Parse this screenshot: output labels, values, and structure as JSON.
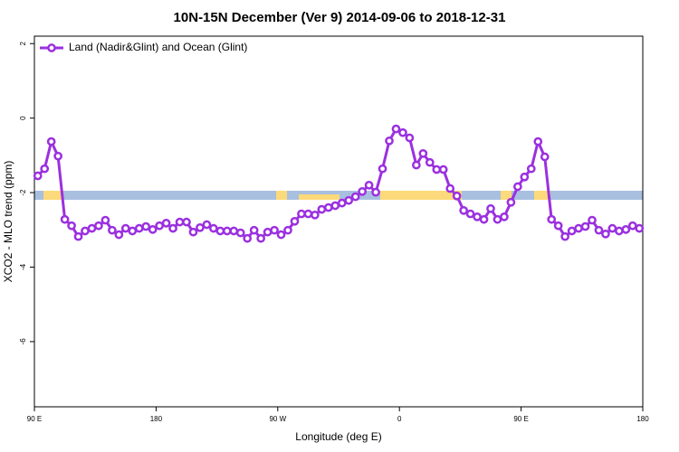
{
  "chart_data": {
    "type": "line",
    "title": "10N-15N December (Ver 9)   2014-09-06 to 2018-12-31",
    "x_label": "Longitude (deg E)",
    "y_label": "XCO2 - MLO trend (ppm)",
    "x": [
      92.5,
      97.5,
      102.5,
      107.5,
      112.5,
      117.5,
      122.5,
      127.5,
      132.5,
      137.5,
      142.5,
      147.5,
      152.5,
      157.5,
      162.5,
      167.5,
      172.5,
      177.5,
      182.5,
      187.5,
      192.5,
      197.5,
      202.5,
      207.5,
      212.5,
      217.5,
      222.5,
      227.5,
      232.5,
      237.5,
      242.5,
      247.5,
      252.5,
      257.5,
      262.5,
      267.5,
      272.5,
      277.5,
      282.5,
      287.5,
      292.5,
      297.5,
      302.5,
      307.5,
      312.5,
      317.5,
      322.5,
      327.5,
      332.5,
      337.5,
      342.5,
      347.5,
      352.5,
      357.5,
      362.5,
      367.5,
      372.5,
      377.5,
      382.5,
      387.5,
      392.5,
      397.5,
      402.5,
      407.5,
      412.5,
      417.5,
      422.5,
      427.5,
      432.5,
      437.5,
      442.5,
      447.5,
      452.5,
      457.5,
      462.5,
      467.5,
      472.5,
      477.5,
      482.5,
      487.5,
      492.5,
      497.5,
      502.5,
      507.5,
      512.5,
      517.5,
      522.5,
      527.5,
      532.5,
      537.5
    ],
    "series": [
      {
        "name": "Land (Nadir&Glint) and Ocean (Glint)",
        "color": "#9b30e0",
        "values": [
          -1.55,
          -1.36,
          -0.63,
          -1.02,
          -2.72,
          -2.89,
          -3.18,
          -3.03,
          -2.96,
          -2.89,
          -2.74,
          -3.01,
          -3.13,
          -2.96,
          -3.03,
          -2.96,
          -2.91,
          -2.99,
          -2.89,
          -2.82,
          -2.96,
          -2.79,
          -2.79,
          -3.06,
          -2.94,
          -2.86,
          -2.96,
          -3.03,
          -3.03,
          -3.03,
          -3.08,
          -3.23,
          -3.01,
          -3.23,
          -3.06,
          -3.01,
          -3.13,
          -3.01,
          -2.77,
          -2.57,
          -2.57,
          -2.6,
          -2.45,
          -2.4,
          -2.35,
          -2.28,
          -2.21,
          -2.11,
          -1.97,
          -1.8,
          -1.99,
          -1.36,
          -0.61,
          -0.29,
          -0.39,
          -0.53,
          -1.26,
          -0.95,
          -1.19,
          -1.38,
          -1.38,
          -1.89,
          -2.09,
          -2.48,
          -2.57,
          -2.65,
          -2.72,
          -2.43,
          -2.72,
          -2.65,
          -2.26,
          -1.84,
          -1.58,
          -1.36,
          -0.63,
          -1.04,
          -2.72,
          -2.89,
          -3.18,
          -3.03,
          -2.96,
          -2.91,
          -2.74,
          -3.01,
          -3.11,
          -2.96,
          -3.03,
          -2.99,
          -2.89,
          -2.96
        ]
      }
    ],
    "xlim": [
      90,
      540
    ],
    "xticks": [
      {
        "value": 90,
        "label": "90 E"
      },
      180,
      {
        "value": 270,
        "label": "90 W"
      },
      {
        "value": 360,
        "label": "0"
      },
      {
        "value": 450,
        "label": "90 E"
      },
      {
        "value": 540,
        "label": "180"
      }
    ],
    "ylim": [
      -7.75,
      2.2
    ],
    "yticks": [
      2,
      0,
      -2,
      -4,
      -6
    ],
    "legend": "upper left"
  }
}
